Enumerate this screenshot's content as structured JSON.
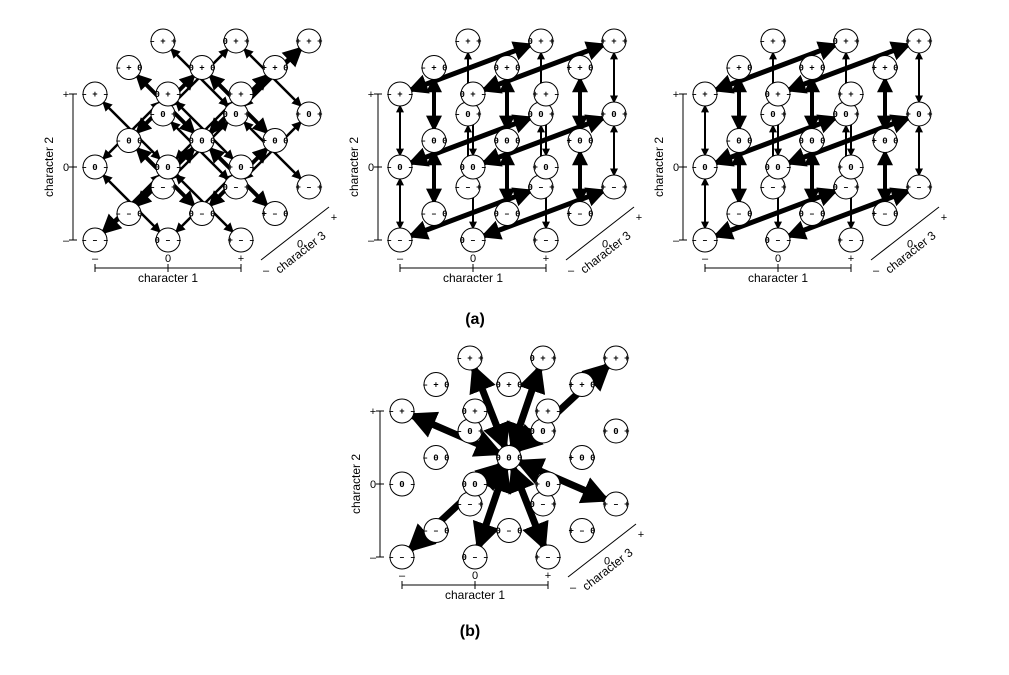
{
  "axis_labels": {
    "x": "character 1",
    "y": "character 2",
    "z": "character 3",
    "minus": "–",
    "zero": "0",
    "plus": "+"
  },
  "panel_labels": {
    "a": "(a)",
    "b": "(b)"
  },
  "node_labels": {
    "mmm": "– – –",
    "0mm": "0 – –",
    "pmm": "+ – –",
    "m0m": "– 0 –",
    "00m": "0 0 –",
    "p0m": "+ 0 –",
    "mpm": "– + –",
    "0pm": "0 + –",
    "ppm": "+ + –",
    "mm0": "– – 0",
    "0m0": "0 – 0",
    "pm0": "+ – 0",
    "m00": "– 0 0",
    "000": "0 0 0",
    "p00": "+ 0 0",
    "mp0": "– + 0",
    "0p0": "0 + 0",
    "pp0": "+ + 0",
    "mmp": "– – +",
    "0mp": "0 – +",
    "pmp": "+ – +",
    "m0p": "– 0 +",
    "00p": "0 0 +",
    "p0p": "+ 0 +",
    "mpp": "– + +",
    "0pp": "0 + +",
    "ppp": "+ + +"
  },
  "panels": [
    {
      "id": "a1",
      "edge_type": "diagonal"
    },
    {
      "id": "a2",
      "edge_type": "axis-aligned"
    },
    {
      "id": "a3",
      "edge_type": "axis-aligned"
    },
    {
      "id": "b",
      "edge_type": "central"
    }
  ]
}
